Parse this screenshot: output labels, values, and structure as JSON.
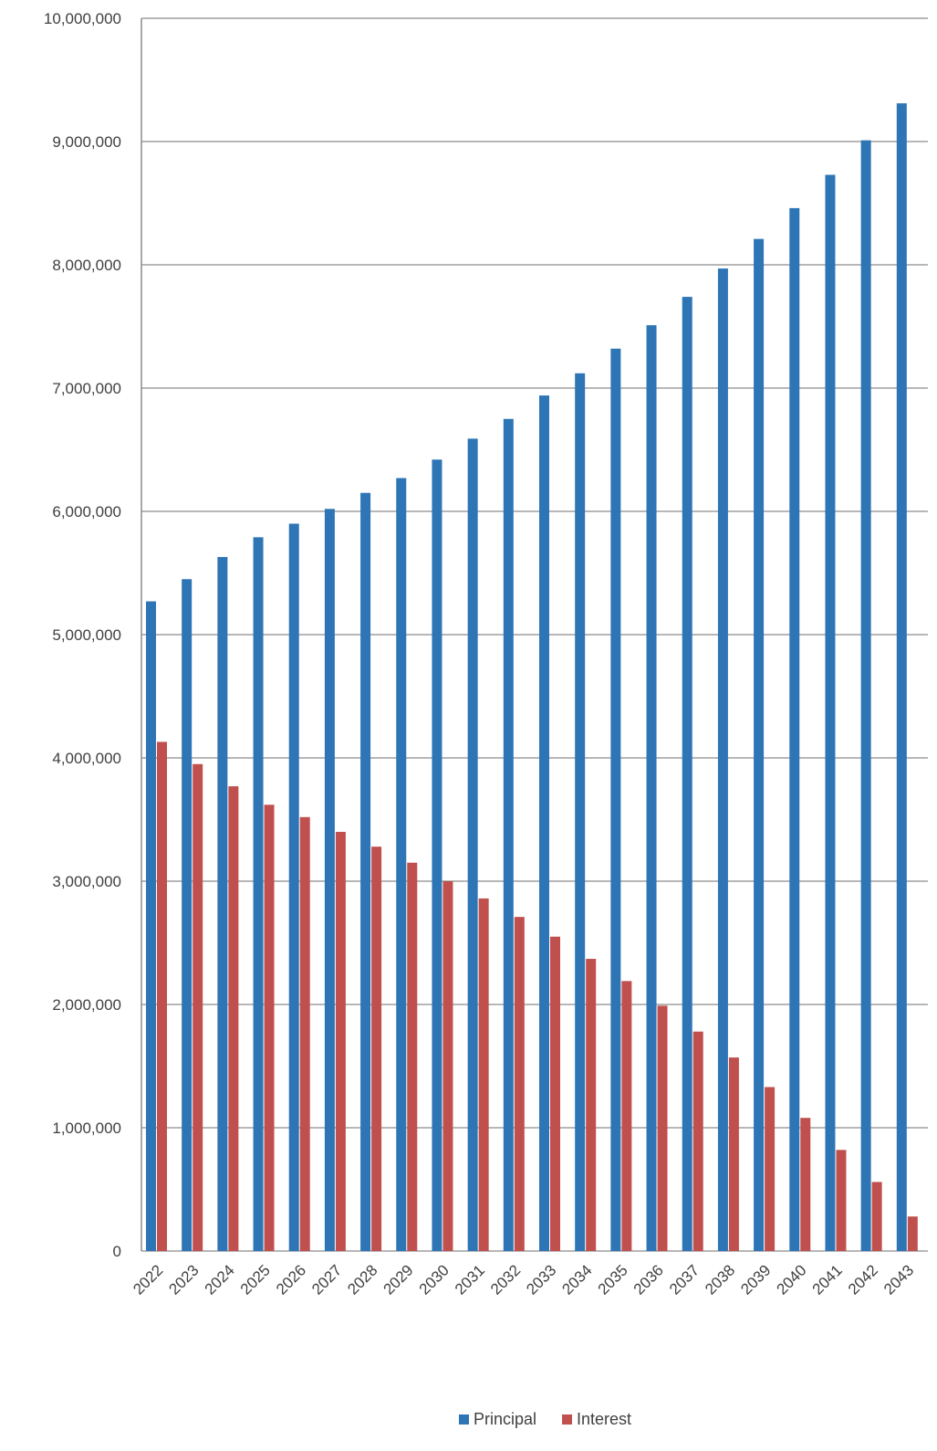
{
  "chart_data": {
    "type": "bar",
    "title": "",
    "xlabel": "",
    "ylabel": "",
    "ylim": [
      0,
      10000000
    ],
    "yticks": [
      "0",
      "1,000,000",
      "2,000,000",
      "3,000,000",
      "4,000,000",
      "5,000,000",
      "6,000,000",
      "7,000,000",
      "8,000,000",
      "9,000,000",
      "10,000,000"
    ],
    "grid": true,
    "legend_position": "bottom",
    "categories": [
      "2022",
      "2023",
      "2024",
      "2025",
      "2026",
      "2027",
      "2028",
      "2029",
      "2030",
      "2031",
      "2032",
      "2033",
      "2034",
      "2035",
      "2036",
      "2037",
      "2038",
      "2039",
      "2040",
      "2041",
      "2042",
      "2043"
    ],
    "series": [
      {
        "name": "Principal",
        "color": "#2E75B6",
        "values": [
          5270000,
          5450000,
          5630000,
          5790000,
          5900000,
          6020000,
          6150000,
          6270000,
          6420000,
          6590000,
          6750000,
          6940000,
          7120000,
          7320000,
          7510000,
          7740000,
          7970000,
          8210000,
          8460000,
          8730000,
          9010000,
          9310000
        ]
      },
      {
        "name": "Interest",
        "color": "#C0504D",
        "values": [
          4130000,
          3950000,
          3770000,
          3620000,
          3520000,
          3400000,
          3280000,
          3150000,
          3000000,
          2860000,
          2710000,
          2550000,
          2370000,
          2190000,
          1990000,
          1780000,
          1570000,
          1330000,
          1080000,
          820000,
          560000,
          280000
        ]
      }
    ]
  }
}
